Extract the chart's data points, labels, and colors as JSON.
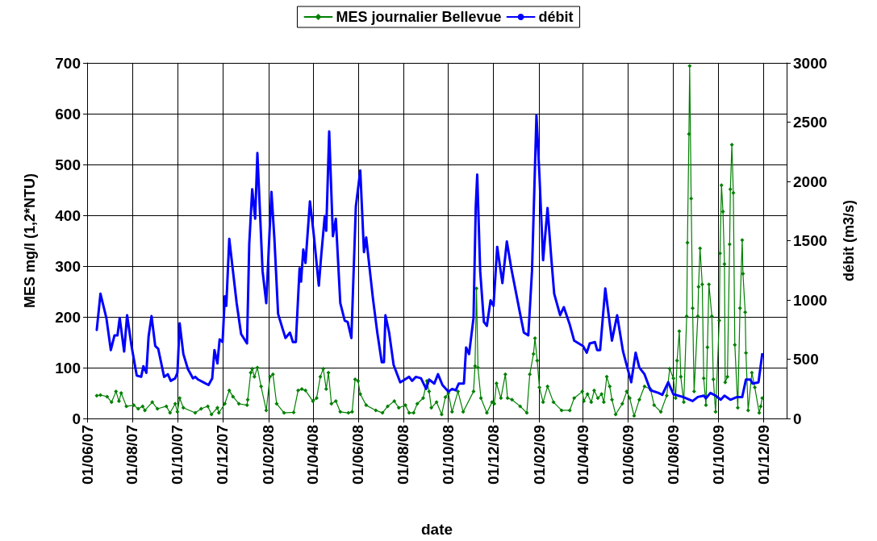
{
  "chart_data": {
    "type": "line",
    "xlabel": "date",
    "ylabel": "MES mg/l (1,2*NTU)",
    "y2label": "débit (m3/s)",
    "legend": "top",
    "grid": true,
    "xlim": [
      "2007-06-01",
      "2010-01-01"
    ],
    "xticks": [
      {
        "value": "2007-06-01",
        "label": "01/06/07"
      },
      {
        "value": "2007-08-01",
        "label": "01/08/07"
      },
      {
        "value": "2007-10-01",
        "label": "01/10/07"
      },
      {
        "value": "2007-12-01",
        "label": "01/12/07"
      },
      {
        "value": "2008-02-01",
        "label": "01/02/08"
      },
      {
        "value": "2008-04-01",
        "label": "01/04/08"
      },
      {
        "value": "2008-06-01",
        "label": "01/06/08"
      },
      {
        "value": "2008-08-01",
        "label": "01/08/08"
      },
      {
        "value": "2008-10-01",
        "label": "01/10/08"
      },
      {
        "value": "2008-12-01",
        "label": "01/12/08"
      },
      {
        "value": "2009-02-01",
        "label": "01/02/09"
      },
      {
        "value": "2009-04-01",
        "label": "01/04/09"
      },
      {
        "value": "2009-06-01",
        "label": "01/06/09"
      },
      {
        "value": "2009-08-01",
        "label": "01/08/09"
      },
      {
        "value": "2009-10-01",
        "label": "01/10/09"
      },
      {
        "value": "2009-12-01",
        "label": "01/12/09"
      }
    ],
    "ylim": [
      0,
      700
    ],
    "yticks": [
      0,
      100,
      200,
      300,
      400,
      500,
      600,
      700
    ],
    "y2lim": [
      0,
      3000
    ],
    "y2ticks": [
      0,
      500,
      1000,
      1500,
      2000,
      2500,
      3000
    ],
    "series": [
      {
        "name": "MES journalier Bellevue",
        "color": "#008000",
        "marker": "diamond",
        "x": [
          "2007-06-14",
          "2007-06-19",
          "2007-06-28",
          "2007-07-04",
          "2007-07-10",
          "2007-07-14",
          "2007-07-17",
          "2007-07-24",
          "2007-08-03",
          "2007-08-09",
          "2007-08-15",
          "2007-08-18",
          "2007-08-28",
          "2007-09-04",
          "2007-09-16",
          "2007-09-21",
          "2007-09-28",
          "2007-10-01",
          "2007-10-04",
          "2007-10-09",
          "2007-10-25",
          "2007-11-02",
          "2007-11-11",
          "2007-11-16",
          "2007-11-24",
          "2007-11-26",
          "2007-12-04",
          "2007-12-10",
          "2007-12-15",
          "2007-12-23",
          "2008-01-03",
          "2008-01-04",
          "2008-01-08",
          "2008-01-10",
          "2008-01-13",
          "2008-01-17",
          "2008-01-22",
          "2008-01-29",
          "2008-02-03",
          "2008-02-07",
          "2008-02-12",
          "2008-02-22",
          "2008-03-06",
          "2008-03-12",
          "2008-03-17",
          "2008-03-22",
          "2008-04-01",
          "2008-04-06",
          "2008-04-11",
          "2008-04-15",
          "2008-04-19",
          "2008-04-22",
          "2008-04-26",
          "2008-05-02",
          "2008-05-08",
          "2008-05-19",
          "2008-05-24",
          "2008-05-28",
          "2008-06-01",
          "2008-06-04",
          "2008-06-12",
          "2008-06-25",
          "2008-07-04",
          "2008-07-11",
          "2008-07-20",
          "2008-07-26",
          "2008-08-04",
          "2008-08-09",
          "2008-08-15",
          "2008-08-20",
          "2008-08-28",
          "2008-09-02",
          "2008-09-05",
          "2008-09-08",
          "2008-09-15",
          "2008-09-22",
          "2008-09-27",
          "2008-10-01",
          "2008-10-06",
          "2008-10-14",
          "2008-10-21",
          "2008-11-04",
          "2008-11-06",
          "2008-11-08",
          "2008-11-10",
          "2008-11-14",
          "2008-11-22",
          "2008-11-29",
          "2008-12-02",
          "2008-12-05",
          "2008-12-11",
          "2008-12-17",
          "2008-12-20",
          "2008-12-26",
          "2009-01-06",
          "2009-01-15",
          "2009-01-19",
          "2009-01-24",
          "2009-01-26",
          "2009-01-29",
          "2009-02-01",
          "2009-02-06",
          "2009-02-12",
          "2009-02-20",
          "2009-03-03",
          "2009-03-14",
          "2009-03-20",
          "2009-03-31",
          "2009-04-02",
          "2009-04-07",
          "2009-04-12",
          "2009-04-16",
          "2009-04-21",
          "2009-04-26",
          "2009-04-29",
          "2009-05-03",
          "2009-05-07",
          "2009-05-10",
          "2009-05-15",
          "2009-05-24",
          "2009-05-30",
          "2009-06-03",
          "2009-06-09",
          "2009-06-16",
          "2009-06-23",
          "2009-07-01",
          "2009-07-06",
          "2009-07-15",
          "2009-07-23",
          "2009-07-27",
          "2009-08-01",
          "2009-08-04",
          "2009-08-06",
          "2009-08-09",
          "2009-08-11",
          "2009-08-15",
          "2009-08-19",
          "2009-08-20",
          "2009-08-22",
          "2009-08-23",
          "2009-08-25",
          "2009-08-27",
          "2009-08-29",
          "2009-09-03",
          "2009-09-04",
          "2009-09-06",
          "2009-09-09",
          "2009-09-11",
          "2009-09-14",
          "2009-09-16",
          "2009-09-18",
          "2009-09-22",
          "2009-09-24",
          "2009-09-27",
          "2009-10-02",
          "2009-10-03",
          "2009-10-05",
          "2009-10-07",
          "2009-10-09",
          "2009-10-10",
          "2009-10-13",
          "2009-10-16",
          "2009-10-17",
          "2009-10-19",
          "2009-10-21",
          "2009-10-23",
          "2009-10-27",
          "2009-10-30",
          "2009-11-02",
          "2009-11-03",
          "2009-11-06",
          "2009-11-07",
          "2009-11-10",
          "2009-11-15",
          "2009-11-19",
          "2009-11-25",
          "2009-11-27",
          "2009-11-29"
        ],
        "values": [
          45,
          46,
          43,
          32,
          53,
          34,
          50,
          24,
          26,
          19,
          24,
          16,
          32,
          19,
          24,
          11,
          29,
          13,
          40,
          21,
          11,
          19,
          24,
          8,
          21,
          11,
          29,
          55,
          43,
          29,
          26,
          37,
          90,
          98,
          82,
          100,
          63,
          16,
          82,
          87,
          29,
          11,
          12,
          55,
          58,
          55,
          34,
          40,
          82,
          98,
          58,
          90,
          29,
          34,
          13,
          11,
          13,
          77,
          74,
          48,
          26,
          16,
          11,
          24,
          34,
          21,
          26,
          11,
          11,
          29,
          40,
          74,
          53,
          21,
          32,
          8,
          42,
          50,
          13,
          53,
          13,
          53,
          103,
          256,
          100,
          40,
          11,
          32,
          29,
          69,
          40,
          87,
          40,
          37,
          24,
          11,
          87,
          127,
          158,
          114,
          61,
          32,
          63,
          32,
          16,
          16,
          40,
          53,
          34,
          48,
          32,
          55,
          40,
          48,
          32,
          82,
          63,
          37,
          8,
          29,
          53,
          40,
          5,
          37,
          63,
          58,
          26,
          13,
          45,
          98,
          79,
          40,
          114,
          172,
          82,
          32,
          201,
          346,
          560,
          694,
          433,
          217,
          53,
          201,
          259,
          335,
          264,
          79,
          26,
          140,
          264,
          201,
          77,
          13,
          193,
          325,
          459,
          407,
          304,
          71,
          82,
          343,
          451,
          539,
          444,
          145,
          21,
          217,
          351,
          285,
          209,
          129,
          16,
          90,
          61,
          11,
          24,
          40
        ]
      },
      {
        "name": "débit",
        "color": "#0000ff",
        "axis": "y2",
        "marker": "none",
        "x": [
          "2007-06-14",
          "2007-06-19",
          "2007-06-27",
          "2007-07-03",
          "2007-07-08",
          "2007-07-12",
          "2007-07-15",
          "2007-07-21",
          "2007-07-25",
          "2007-07-31",
          "2007-08-07",
          "2007-08-13",
          "2007-08-16",
          "2007-08-20",
          "2007-08-23",
          "2007-08-27",
          "2007-09-01",
          "2007-09-05",
          "2007-09-13",
          "2007-09-18",
          "2007-09-22",
          "2007-09-28",
          "2007-10-01",
          "2007-10-04",
          "2007-10-09",
          "2007-10-15",
          "2007-10-22",
          "2007-10-25",
          "2007-10-29",
          "2007-11-05",
          "2007-11-12",
          "2007-11-17",
          "2007-11-20",
          "2007-11-24",
          "2007-11-27",
          "2007-12-01",
          "2007-12-04",
          "2007-12-06",
          "2007-12-10",
          "2007-12-20",
          "2007-12-26",
          "2008-01-03",
          "2008-01-06",
          "2008-01-10",
          "2008-01-14",
          "2008-01-17",
          "2008-01-24",
          "2008-01-29",
          "2008-02-02",
          "2008-02-05",
          "2008-02-09",
          "2008-02-14",
          "2008-02-20",
          "2008-02-24",
          "2008-03-01",
          "2008-03-05",
          "2008-03-09",
          "2008-03-14",
          "2008-03-16",
          "2008-03-19",
          "2008-03-22",
          "2008-03-28",
          "2008-04-02",
          "2008-04-09",
          "2008-04-12",
          "2008-04-17",
          "2008-04-19",
          "2008-04-23",
          "2008-04-28",
          "2008-05-02",
          "2008-05-08",
          "2008-05-14",
          "2008-05-18",
          "2008-05-23",
          "2008-05-29",
          "2008-06-04",
          "2008-06-09",
          "2008-06-12",
          "2008-06-21",
          "2008-06-27",
          "2008-07-03",
          "2008-07-06",
          "2008-07-08",
          "2008-07-13",
          "2008-07-19",
          "2008-07-28",
          "2008-08-09",
          "2008-08-13",
          "2008-08-18",
          "2008-08-25",
          "2008-09-01",
          "2008-09-05",
          "2008-09-12",
          "2008-09-17",
          "2008-09-23",
          "2008-10-01",
          "2008-10-06",
          "2008-10-11",
          "2008-10-15",
          "2008-10-22",
          "2008-10-25",
          "2008-10-29",
          "2008-11-04",
          "2008-11-07",
          "2008-11-09",
          "2008-11-13",
          "2008-11-18",
          "2008-11-22",
          "2008-11-27",
          "2008-12-01",
          "2008-12-06",
          "2008-12-13",
          "2008-12-19",
          "2008-12-25",
          "2009-01-06",
          "2009-01-11",
          "2009-01-17",
          "2009-01-22",
          "2009-01-28",
          "2009-02-01",
          "2009-02-06",
          "2009-02-12",
          "2009-02-17",
          "2009-02-21",
          "2009-03-01",
          "2009-03-06",
          "2009-03-14",
          "2009-03-20",
          "2009-04-01",
          "2009-04-06",
          "2009-04-10",
          "2009-04-17",
          "2009-04-20",
          "2009-04-24",
          "2009-05-01",
          "2009-05-10",
          "2009-05-17",
          "2009-05-25",
          "2009-06-05",
          "2009-06-11",
          "2009-06-16",
          "2009-06-23",
          "2009-07-01",
          "2009-07-12",
          "2009-07-17",
          "2009-07-25",
          "2009-08-01",
          "2009-08-14",
          "2009-08-27",
          "2009-09-03",
          "2009-09-11",
          "2009-09-14",
          "2009-09-20",
          "2009-09-27",
          "2009-10-04",
          "2009-10-09",
          "2009-10-17",
          "2009-10-26",
          "2009-11-02",
          "2009-11-07",
          "2009-11-13",
          "2009-11-16",
          "2009-11-24",
          "2009-11-29"
        ],
        "values": [
          747,
          1052,
          848,
          577,
          701,
          701,
          848,
          565,
          871,
          611,
          362,
          351,
          441,
          385,
          690,
          864,
          611,
          588,
          351,
          373,
          317,
          339,
          385,
          803,
          543,
          419,
          339,
          351,
          328,
          305,
          282,
          339,
          577,
          464,
          667,
          645,
          1030,
          950,
          1515,
          973,
          713,
          633,
          1471,
          1934,
          1685,
          2240,
          1244,
          973,
          1515,
          1912,
          1515,
          882,
          758,
          679,
          724,
          645,
          645,
          1267,
          1154,
          1425,
          1312,
          1832,
          1561,
          1120,
          1357,
          1708,
          1583,
          2421,
          1538,
          1685,
          973,
          826,
          814,
          679,
          1787,
          2092,
          1403,
          1527,
          1018,
          724,
          475,
          475,
          871,
          724,
          453,
          305,
          351,
          317,
          351,
          339,
          249,
          328,
          294,
          373,
          282,
          226,
          249,
          238,
          294,
          294,
          599,
          543,
          848,
          1787,
          2058,
          1244,
          814,
          781,
          996,
          950,
          1448,
          1142,
          1493,
          1267,
          882,
          724,
          701,
          1244,
          2557,
          2058,
          1335,
          1776,
          1357,
          1052,
          871,
          939,
          792,
          656,
          611,
          555,
          633,
          645,
          577,
          577,
          1097,
          656,
          871,
          565,
          305,
          555,
          430,
          373,
          238,
          215,
          199,
          305,
          204,
          181,
          147,
          181,
          192,
          170,
          215,
          192,
          158,
          192,
          158,
          181,
          181,
          328,
          328,
          294,
          305,
          543
        ]
      }
    ]
  }
}
